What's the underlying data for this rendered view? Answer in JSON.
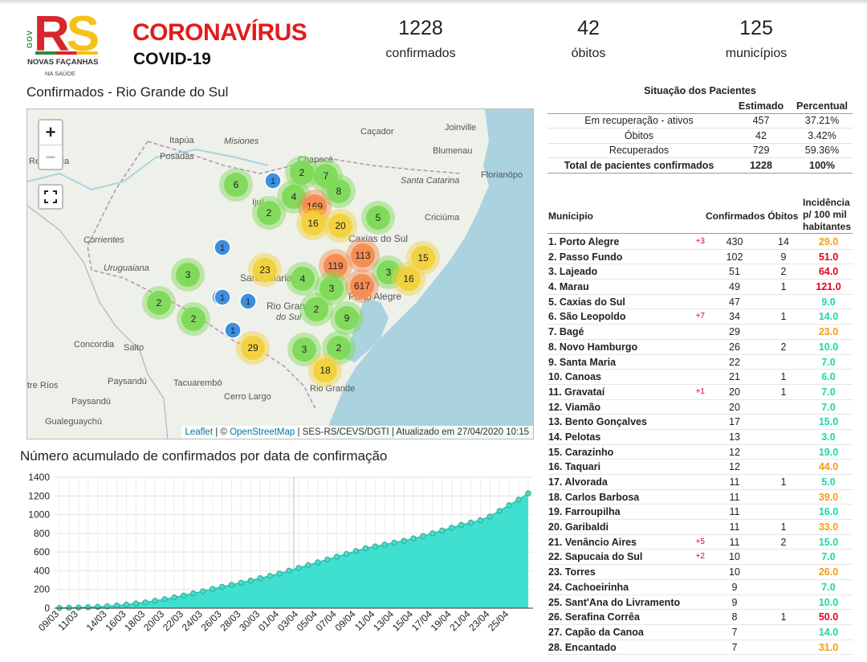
{
  "header": {
    "logo_gov": "GOV",
    "logo_r": "R",
    "logo_s": "S",
    "logo_sub1": "NOVAS FAÇANHAS",
    "logo_sub2": "NA SAÚDE",
    "title": "CORONAVÍRUS",
    "subtitle": "COVID-19"
  },
  "stats": [
    {
      "value": "1228",
      "label": "confirmados"
    },
    {
      "value": "42",
      "label": "óbitos"
    },
    {
      "value": "125",
      "label": "municípios"
    }
  ],
  "map_section": {
    "title": "Confirmados - Rio Grande do Sul",
    "zoom_in": "+",
    "zoom_out": "−",
    "attribution_leaflet": "Leaflet",
    "attribution_osm": "OpenStreetMap",
    "attribution_rest": "| SES-RS/CEVS/DGTI | Atualizado em 27/04/2020 10:15",
    "attribution_sep": " | © ",
    "places": [
      {
        "name": "Joinville"
      },
      {
        "name": "Caçador"
      },
      {
        "name": "Blumenau"
      },
      {
        "name": "Itapúa"
      },
      {
        "name": "Misiones"
      },
      {
        "name": "Posadas"
      },
      {
        "name": "Chapecó"
      },
      {
        "name": "Santa Catarina"
      },
      {
        "name": "Florianópo"
      },
      {
        "name": "Re"
      },
      {
        "name": "ncia"
      },
      {
        "name": "Criciúma"
      },
      {
        "name": "Corrientes"
      },
      {
        "name": "Caxias do Sul"
      },
      {
        "name": "Uruguaiana"
      },
      {
        "name": "Santa Maria"
      },
      {
        "name": "Porto Alegre"
      },
      {
        "name": "Rio Grande"
      },
      {
        "name": "do Sul"
      },
      {
        "name": "Concordia"
      },
      {
        "name": "Salto"
      },
      {
        "name": "Paysandú"
      },
      {
        "name": "Tacuarembó"
      },
      {
        "name": "Cerro Largo"
      },
      {
        "name": "Rio Grande"
      },
      {
        "name": "tre Ríos"
      },
      {
        "name": "Paysandú"
      },
      {
        "name": "Gualeguaychú"
      },
      {
        "name": "Ijuí"
      }
    ],
    "clusters": [
      {
        "count": "6",
        "level": "green"
      },
      {
        "count": "1",
        "level": "blue"
      },
      {
        "count": "2",
        "level": "green"
      },
      {
        "count": "7",
        "level": "green"
      },
      {
        "count": "8",
        "level": "green"
      },
      {
        "count": "4",
        "level": "green"
      },
      {
        "count": "2",
        "level": "green"
      },
      {
        "count": "169",
        "level": "orange"
      },
      {
        "count": "16",
        "level": "yellow"
      },
      {
        "count": "20",
        "level": "yellow"
      },
      {
        "count": "5",
        "level": "green"
      },
      {
        "count": "1",
        "level": "blue"
      },
      {
        "count": "113",
        "level": "orange"
      },
      {
        "count": "15",
        "level": "yellow"
      },
      {
        "count": "23",
        "level": "yellow"
      },
      {
        "count": "119",
        "level": "orange"
      },
      {
        "count": "3",
        "level": "green"
      },
      {
        "count": "16",
        "level": "yellow"
      },
      {
        "count": "3",
        "level": "green"
      },
      {
        "count": "1",
        "level": "blue"
      },
      {
        "count": "4",
        "level": "green"
      },
      {
        "count": "3",
        "level": "green"
      },
      {
        "count": "617",
        "level": "orange"
      },
      {
        "count": "2",
        "level": "green"
      },
      {
        "count": "1",
        "level": "blue"
      },
      {
        "count": "1",
        "level": "blue"
      },
      {
        "count": "2",
        "level": "green"
      },
      {
        "count": "9",
        "level": "green"
      },
      {
        "count": "2",
        "level": "green"
      },
      {
        "count": "1",
        "level": "blue"
      },
      {
        "count": "29",
        "level": "yellow"
      },
      {
        "count": "3",
        "level": "green"
      },
      {
        "count": "2",
        "level": "green"
      },
      {
        "count": "18",
        "level": "yellow"
      }
    ],
    "colors": {
      "green": "#7ed957",
      "yellow": "#f2d13a",
      "orange": "#f58b4f",
      "blue": "#3d8fe0",
      "sea": "#aad3df"
    }
  },
  "status": {
    "title": "Situação dos Pacientes",
    "headers": [
      "",
      "Estimado",
      "Percentual"
    ],
    "rows": [
      [
        "Em recuperação - ativos",
        "457",
        "37.21%"
      ],
      [
        "Óbitos",
        "42",
        "3.42%"
      ],
      [
        "Recuperados",
        "729",
        "59.36%"
      ]
    ],
    "total": [
      "Total de pacientes confirmados",
      "1228",
      "100%"
    ]
  },
  "municipios": {
    "headers": {
      "name": "Municipio",
      "confirmados_obitos": "Confirmados Óbitos",
      "inc1": "Incidência",
      "inc2": "p/ 100 mil",
      "inc3": "habitantes"
    },
    "rows": [
      {
        "name": "1. Porto Alegre",
        "delta": "+3",
        "conf": "430",
        "obit": "14",
        "inc": "29.0",
        "level": "orange"
      },
      {
        "name": "2. Passo Fundo",
        "delta": "",
        "conf": "102",
        "obit": "9",
        "inc": "51.0",
        "level": "red"
      },
      {
        "name": "3. Lajeado",
        "delta": "",
        "conf": "51",
        "obit": "2",
        "inc": "64.0",
        "level": "red"
      },
      {
        "name": "4. Marau",
        "delta": "",
        "conf": "49",
        "obit": "1",
        "inc": "121.0",
        "level": "red"
      },
      {
        "name": "5. Caxias do Sul",
        "delta": "",
        "conf": "47",
        "obit": "",
        "inc": "9.0",
        "level": "teal"
      },
      {
        "name": "6. São Leopoldo",
        "delta": "+7",
        "conf": "34",
        "obit": "1",
        "inc": "14.0",
        "level": "teal"
      },
      {
        "name": "7. Bagé",
        "delta": "",
        "conf": "29",
        "obit": "",
        "inc": "23.0",
        "level": "orange"
      },
      {
        "name": "8. Novo Hamburgo",
        "delta": "",
        "conf": "26",
        "obit": "2",
        "inc": "10.0",
        "level": "teal"
      },
      {
        "name": "9. Santa Maria",
        "delta": "",
        "conf": "22",
        "obit": "",
        "inc": "7.0",
        "level": "teal"
      },
      {
        "name": "10. Canoas",
        "delta": "",
        "conf": "21",
        "obit": "1",
        "inc": "6.0",
        "level": "teal"
      },
      {
        "name": "11. Gravataí",
        "delta": "+1",
        "conf": "20",
        "obit": "1",
        "inc": "7.0",
        "level": "teal"
      },
      {
        "name": "12. Viamão",
        "delta": "",
        "conf": "20",
        "obit": "",
        "inc": "7.0",
        "level": "teal"
      },
      {
        "name": "13. Bento Gonçalves",
        "delta": "",
        "conf": "17",
        "obit": "",
        "inc": "15.0",
        "level": "teal"
      },
      {
        "name": "14. Pelotas",
        "delta": "",
        "conf": "13",
        "obit": "",
        "inc": "3.0",
        "level": "teal"
      },
      {
        "name": "15. Carazinho",
        "delta": "",
        "conf": "12",
        "obit": "",
        "inc": "19.0",
        "level": "teal"
      },
      {
        "name": "16. Taquari",
        "delta": "",
        "conf": "12",
        "obit": "",
        "inc": "44.0",
        "level": "orange"
      },
      {
        "name": "17. Alvorada",
        "delta": "",
        "conf": "11",
        "obit": "1",
        "inc": "5.0",
        "level": "teal"
      },
      {
        "name": "18. Carlos Barbosa",
        "delta": "",
        "conf": "11",
        "obit": "",
        "inc": "39.0",
        "level": "orange"
      },
      {
        "name": "19. Farroupilha",
        "delta": "",
        "conf": "11",
        "obit": "",
        "inc": "16.0",
        "level": "teal"
      },
      {
        "name": "20. Garibaldi",
        "delta": "",
        "conf": "11",
        "obit": "1",
        "inc": "33.0",
        "level": "orange"
      },
      {
        "name": "21. Venâncio Aires",
        "delta": "+5",
        "conf": "11",
        "obit": "2",
        "inc": "15.0",
        "level": "teal"
      },
      {
        "name": "22. Sapucaia do Sul",
        "delta": "+2",
        "conf": "10",
        "obit": "",
        "inc": "7.0",
        "level": "teal"
      },
      {
        "name": "23. Torres",
        "delta": "",
        "conf": "10",
        "obit": "",
        "inc": "26.0",
        "level": "orange"
      },
      {
        "name": "24. Cachoeirinha",
        "delta": "",
        "conf": "9",
        "obit": "",
        "inc": "7.0",
        "level": "teal"
      },
      {
        "name": "25. Sant'Ana do Livramento",
        "delta": "",
        "conf": "9",
        "obit": "",
        "inc": "10.0",
        "level": "teal"
      },
      {
        "name": "26. Serafina Corrêa",
        "delta": "",
        "conf": "8",
        "obit": "1",
        "inc": "50.0",
        "level": "red"
      },
      {
        "name": "27. Capão da Canoa",
        "delta": "",
        "conf": "7",
        "obit": "",
        "inc": "14.0",
        "level": "teal"
      },
      {
        "name": "28. Encantado",
        "delta": "",
        "conf": "7",
        "obit": "",
        "inc": "31.0",
        "level": "orange"
      }
    ]
  },
  "chart_section": {
    "title": "Número acumulado de confirmados por data de confirmação",
    "fill_color": "#40e0d0",
    "point_color": "#3aa58e"
  },
  "chart_data": {
    "type": "area",
    "title": "Número acumulado de confirmados por data de confirmação",
    "xlabel": "",
    "ylabel": "",
    "ylim": [
      0,
      1400
    ],
    "yticks": [
      0,
      200,
      400,
      600,
      800,
      1000,
      1200,
      1400
    ],
    "x_tick_labels": [
      "09/03",
      "11/03",
      "14/03",
      "16/03",
      "18/03",
      "20/03",
      "22/03",
      "24/03",
      "26/03",
      "28/03",
      "30/03",
      "01/04",
      "03/04",
      "05/04",
      "07/04",
      "09/04",
      "11/04",
      "13/04",
      "15/04",
      "17/04",
      "19/04",
      "21/04",
      "23/04",
      "25/04"
    ],
    "x": [
      "09/03",
      "10/03",
      "11/03",
      "12/03",
      "13/03",
      "14/03",
      "15/03",
      "16/03",
      "17/03",
      "18/03",
      "19/03",
      "20/03",
      "21/03",
      "22/03",
      "23/03",
      "24/03",
      "25/03",
      "26/03",
      "27/03",
      "28/03",
      "29/03",
      "30/03",
      "31/03",
      "01/04",
      "02/04",
      "03/04",
      "04/04",
      "05/04",
      "06/04",
      "07/04",
      "08/04",
      "09/04",
      "10/04",
      "11/04",
      "12/04",
      "13/04",
      "14/04",
      "15/04",
      "16/04",
      "17/04",
      "18/04",
      "19/04",
      "20/04",
      "21/04",
      "22/04",
      "23/04",
      "24/04",
      "25/04",
      "26/04",
      "27/04"
    ],
    "grid": true,
    "series": [
      {
        "values": [
          2,
          4,
          6,
          10,
          14,
          20,
          28,
          38,
          50,
          62,
          78,
          96,
          115,
          135,
          158,
          180,
          205,
          228,
          250,
          272,
          295,
          320,
          345,
          370,
          400,
          430,
          460,
          490,
          520,
          550,
          580,
          610,
          640,
          660,
          680,
          700,
          720,
          745,
          770,
          800,
          830,
          860,
          890,
          915,
          940,
          980,
          1040,
          1100,
          1160,
          1228
        ]
      }
    ]
  }
}
